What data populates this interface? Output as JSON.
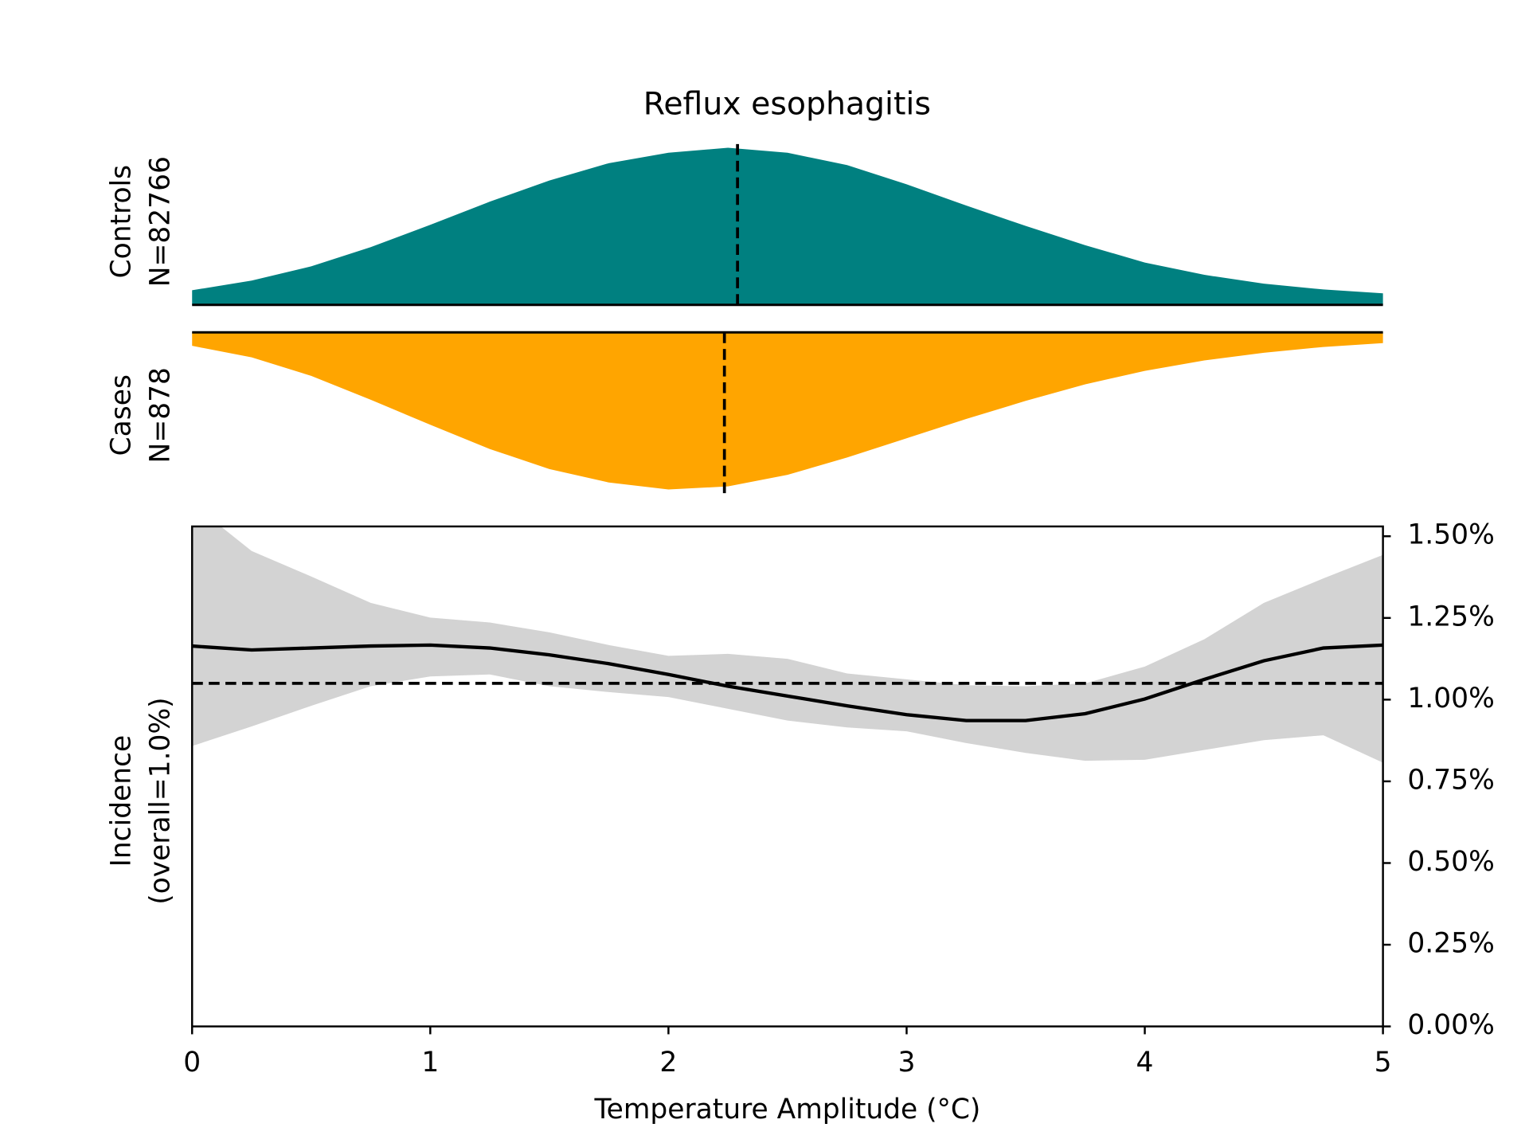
{
  "chart_data": [
    {
      "type": "area",
      "title": "Reflux esophagitis",
      "ylabel": [
        "Controls",
        "N=82766"
      ],
      "orientation": "up",
      "color": "#008080",
      "x": [
        0,
        0.25,
        0.5,
        0.75,
        1,
        1.25,
        1.5,
        1.75,
        2,
        2.25,
        2.5,
        2.75,
        3,
        3.25,
        3.5,
        3.75,
        4,
        4.25,
        4.5,
        4.75,
        5
      ],
      "values": [
        0.038,
        0.063,
        0.1,
        0.15,
        0.208,
        0.268,
        0.323,
        0.368,
        0.395,
        0.408,
        0.395,
        0.363,
        0.313,
        0.258,
        0.205,
        0.155,
        0.11,
        0.078,
        0.055,
        0.04,
        0.03
      ],
      "median": 2.29,
      "xlim": [
        0,
        5
      ],
      "ylim": [
        0,
        0.42
      ]
    },
    {
      "type": "area",
      "ylabel": [
        "Cases",
        "N=878"
      ],
      "orientation": "down",
      "color": "#ffa500",
      "x": [
        0,
        0.25,
        0.5,
        0.75,
        1,
        1.25,
        1.5,
        1.75,
        2,
        2.25,
        2.5,
        2.75,
        3,
        3.25,
        3.5,
        3.75,
        4,
        4.25,
        4.5,
        4.75,
        5
      ],
      "values": [
        0.035,
        0.065,
        0.113,
        0.175,
        0.24,
        0.303,
        0.355,
        0.39,
        0.408,
        0.4,
        0.37,
        0.325,
        0.275,
        0.225,
        0.178,
        0.135,
        0.1,
        0.073,
        0.053,
        0.038,
        0.028
      ],
      "median": 2.235,
      "xlim": [
        0,
        5
      ],
      "ylim": [
        0,
        0.42
      ]
    },
    {
      "type": "line",
      "xlabel": "Temperature Amplitude (°C)",
      "ylabel": [
        "Incidence",
        "(overall=1.0%)"
      ],
      "color": "#000000",
      "ci_color": "#d3d3d3",
      "x": [
        0,
        0.25,
        0.5,
        0.75,
        1,
        1.25,
        1.5,
        1.75,
        2,
        2.25,
        2.5,
        2.75,
        3,
        3.25,
        3.5,
        3.75,
        4,
        4.25,
        4.5,
        4.75,
        5
      ],
      "values": [
        1.164,
        1.152,
        1.158,
        1.164,
        1.167,
        1.158,
        1.137,
        1.11,
        1.077,
        1.041,
        1.011,
        0.981,
        0.954,
        0.936,
        0.936,
        0.957,
        1.002,
        1.062,
        1.119,
        1.158,
        1.167
      ],
      "ci_upper": [
        1.6,
        1.455,
        1.377,
        1.296,
        1.251,
        1.236,
        1.206,
        1.167,
        1.134,
        1.14,
        1.125,
        1.08,
        1.062,
        1.044,
        1.041,
        1.05,
        1.101,
        1.185,
        1.296,
        1.371,
        1.443
      ],
      "ci_lower": [
        0.858,
        0.918,
        0.981,
        1.041,
        1.071,
        1.077,
        1.041,
        1.023,
        1.008,
        0.972,
        0.936,
        0.915,
        0.903,
        0.867,
        0.837,
        0.813,
        0.816,
        0.846,
        0.876,
        0.891,
        0.807
      ],
      "reference": 1.05,
      "xlim": [
        0,
        5
      ],
      "xticks": [
        0,
        1,
        2,
        3,
        4,
        5
      ],
      "y2lim": [
        0,
        1.53
      ],
      "y2ticks": [
        {
          "value": 0,
          "label": "0.00%"
        },
        {
          "value": 0.25,
          "label": "0.25%"
        },
        {
          "value": 0.5,
          "label": "0.50%"
        },
        {
          "value": 0.75,
          "label": "0.75%"
        },
        {
          "value": 1,
          "label": "1.00%"
        },
        {
          "value": 1.25,
          "label": "1.25%"
        },
        {
          "value": 1.5,
          "label": "1.50%"
        }
      ]
    }
  ]
}
